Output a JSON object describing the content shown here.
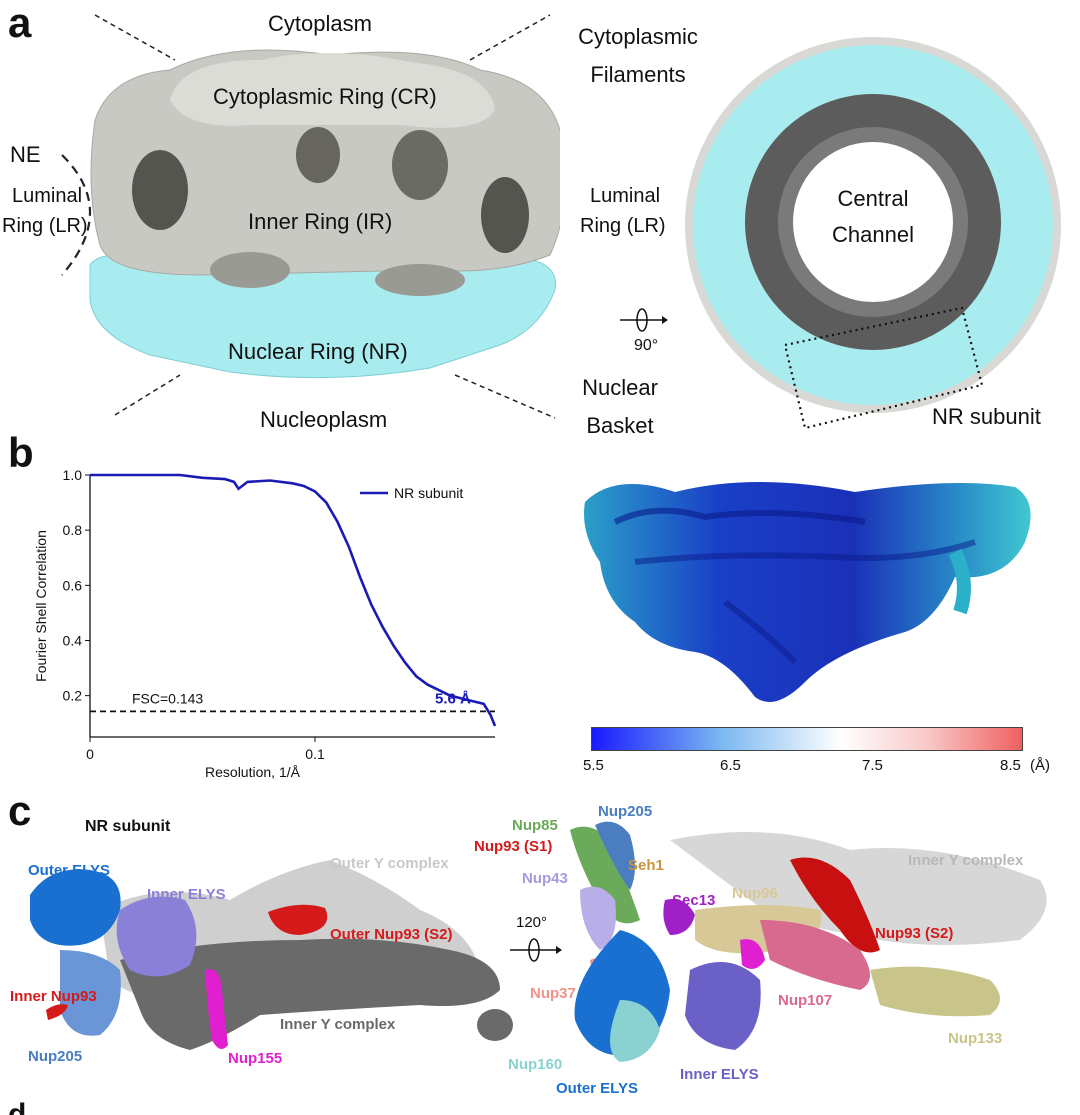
{
  "panels": {
    "a": "a",
    "b": "b",
    "c": "c"
  },
  "panel_a": {
    "cytoplasm": "Cytoplasm",
    "cytoplasmic_filaments_l1": "Cytoplasmic",
    "cytoplasmic_filaments_l2": "Filaments",
    "cr": "Cytoplasmic Ring (CR)",
    "ne": "NE",
    "lr_left_l1": "Luminal",
    "lr_left_l2": "Ring (LR)",
    "ir": "Inner Ring (IR)",
    "lr_right_l1": "Luminal",
    "lr_right_l2": "Ring (LR)",
    "nr": "Nuclear Ring (NR)",
    "nucleoplasm": "Nucleoplasm",
    "nuclear_basket_l1": "Nuclear",
    "nuclear_basket_l2": "Basket",
    "central_channel_l1": "Central",
    "central_channel_l2": "Channel",
    "rotation": "90°",
    "nr_subunit": "NR subunit",
    "colors": {
      "grey_map": "#c9c9c4",
      "cyan_map": "#a8ecef",
      "dark_ring": "#5c5c5c"
    }
  },
  "panel_b": {
    "resolution_label": "5.6 Å",
    "fsc_threshold_label": "FSC=0.143",
    "colorbar": {
      "ticks": [
        "5.5",
        "6.5",
        "7.5",
        "8.5"
      ],
      "unit": "(Å)",
      "min": 5.5,
      "max": 8.5,
      "colors": [
        "#1a1aff",
        "#ffffff",
        "#f06060"
      ]
    }
  },
  "chart_data": {
    "type": "line",
    "xlabel": "Resolution, 1/Å",
    "ylabel": "Fourier Shell Correlation",
    "xlim": [
      0,
      0.18
    ],
    "ylim": [
      0.05,
      1.0
    ],
    "xticks": [
      0,
      0.1
    ],
    "xtick_labels": [
      "0",
      "0.1"
    ],
    "yticks": [
      0.2,
      0.4,
      0.6,
      0.8,
      1.0
    ],
    "ytick_labels": [
      "0.2",
      "0.4",
      "0.6",
      "0.8",
      "1.0"
    ],
    "legend": "top-right",
    "threshold": 0.143,
    "series": [
      {
        "name": "NR subunit",
        "color": "#1a1ab4",
        "x": [
          0,
          0.02,
          0.04,
          0.05,
          0.06,
          0.064,
          0.066,
          0.07,
          0.08,
          0.09,
          0.095,
          0.1,
          0.105,
          0.11,
          0.115,
          0.12,
          0.125,
          0.13,
          0.135,
          0.14,
          0.145,
          0.15,
          0.155,
          0.16,
          0.165,
          0.17,
          0.175,
          0.178,
          0.18
        ],
        "y": [
          1.0,
          1.0,
          1.0,
          0.99,
          0.985,
          0.975,
          0.95,
          0.975,
          0.98,
          0.97,
          0.96,
          0.94,
          0.9,
          0.83,
          0.74,
          0.63,
          0.53,
          0.45,
          0.38,
          0.32,
          0.27,
          0.24,
          0.22,
          0.2,
          0.19,
          0.18,
          0.17,
          0.13,
          0.09
        ]
      }
    ]
  },
  "panel_c": {
    "nr_subunit": "NR subunit",
    "left": {
      "outer_elys": "Outer ELYS",
      "inner_elys": "Inner ELYS",
      "outer_y_complex": "Outer Y complex",
      "outer_nup93": "Outer Nup93 (S2)",
      "inner_nup93": "Inner Nup93",
      "nup205": "Nup205",
      "nup155": "Nup155",
      "inner_y_complex": "Inner Y complex"
    },
    "rotation": "120°",
    "right": {
      "nup85": "Nup85",
      "nup205": "Nup205",
      "nup93_s1": "Nup93 (S1)",
      "seh1": "Seh1",
      "nup43": "Nup43",
      "sec13": "Sec13",
      "nup96": "Nup96",
      "inner_y_complex": "Inner Y complex",
      "nup93_s2": "Nup93 (S2)",
      "nup37": "Nup37",
      "nup107": "Nup107",
      "nup133": "Nup133",
      "nup160": "Nup160",
      "outer_elys": "Outer ELYS",
      "inner_elys": "Inner ELYS"
    },
    "colors": {
      "nup85": "#6aaa5a",
      "nup205": "#4a7ec0",
      "nup93": "#d41a1a",
      "seh1": "#c8943c",
      "nup43": "#a99ae0",
      "sec13": "#a020c8",
      "nup96": "#d8c898",
      "nup37": "#f0928a",
      "nup107": "#d86a90",
      "nup133": "#c8c48a",
      "nup160": "#8ad2d2",
      "elys_outer": "#1a70d0",
      "elys_inner": "#6a60c8",
      "nup155": "#e020d0",
      "grey": "#a0a0a0"
    }
  },
  "next_panel_fragment": "d"
}
